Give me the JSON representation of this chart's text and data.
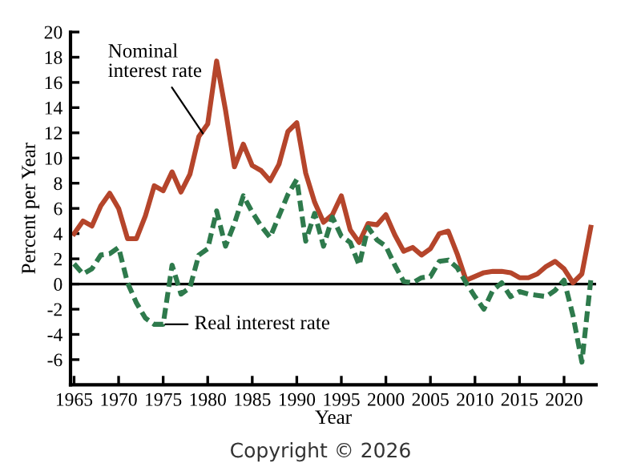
{
  "chart_data": {
    "type": "line",
    "x": [
      1965,
      1966,
      1967,
      1968,
      1969,
      1970,
      1971,
      1972,
      1973,
      1974,
      1975,
      1976,
      1977,
      1978,
      1979,
      1980,
      1981,
      1982,
      1983,
      1984,
      1985,
      1986,
      1987,
      1988,
      1989,
      1990,
      1991,
      1992,
      1993,
      1994,
      1995,
      1996,
      1997,
      1998,
      1999,
      2000,
      2001,
      2002,
      2003,
      2004,
      2005,
      2006,
      2007,
      2008,
      2009,
      2010,
      2011,
      2012,
      2013,
      2014,
      2015,
      2016,
      2017,
      2018,
      2019,
      2020,
      2021,
      2022,
      2023
    ],
    "series": [
      {
        "color": "#b5452b",
        "line_style": "solid",
        "values": [
          4.0,
          5.0,
          4.6,
          6.2,
          7.2,
          6.0,
          3.6,
          3.6,
          5.4,
          7.8,
          7.4,
          8.9,
          7.3,
          8.7,
          11.7,
          12.7,
          17.7,
          13.8,
          9.3,
          11.1,
          9.4,
          9.0,
          8.2,
          9.5,
          12.1,
          12.8,
          8.8,
          6.5,
          4.9,
          5.5,
          7.0,
          4.3,
          3.3,
          4.8,
          4.7,
          5.5,
          3.9,
          2.6,
          2.9,
          2.3,
          2.8,
          4.0,
          4.2,
          2.4,
          0.3,
          0.6,
          0.9,
          1.0,
          1.0,
          0.9,
          0.5,
          0.5,
          0.8,
          1.4,
          1.8,
          1.2,
          0.1,
          0.8,
          4.5
        ]
      },
      {
        "color": "#2e7a4c",
        "line_style": "dashed",
        "values": [
          1.6,
          0.8,
          1.2,
          2.3,
          2.4,
          2.9,
          0.1,
          -1.5,
          -2.7,
          -3.2,
          -3.2,
          1.5,
          -0.8,
          -0.3,
          2.3,
          2.8,
          5.8,
          3.0,
          4.8,
          7.0,
          5.7,
          4.6,
          3.7,
          5.4,
          7.1,
          8.3,
          3.4,
          5.6,
          3.0,
          5.3,
          3.8,
          3.3,
          1.5,
          4.5,
          3.5,
          3.0,
          1.5,
          0.2,
          0.1,
          0.5,
          0.6,
          1.8,
          1.9,
          1.3,
          0.1,
          -1.0,
          -2.0,
          -0.5,
          0.1,
          -1.0,
          -0.6,
          -0.8,
          -0.9,
          -1.0,
          -0.5,
          0.3,
          -2.5,
          -6.2,
          0.3
        ]
      }
    ],
    "xlabel": "Year",
    "ylabel": "Percent per Year",
    "xlim": [
      1964.6,
      2023.6
    ],
    "xticks": [
      1965,
      1970,
      1975,
      1980,
      1985,
      1990,
      1995,
      2000,
      2005,
      2010,
      2015,
      2020
    ],
    "ylim": [
      -8,
      20
    ],
    "yticks": [
      -6,
      -4,
      -2,
      0,
      2,
      4,
      6,
      8,
      10,
      12,
      14,
      16,
      18,
      20
    ],
    "ref_lines": [
      {
        "axis": "y",
        "value": 0,
        "color": "#000000",
        "line_style": "solid"
      }
    ],
    "annotations": [
      {
        "text": "Nominal\ninterest rate",
        "x": 1979.6,
        "y": 11.8
      },
      {
        "text": "Real interest rate",
        "x": 1975,
        "y": -3.2
      },
      "Copyright © 2026"
    ],
    "grid": false,
    "legend": false
  }
}
